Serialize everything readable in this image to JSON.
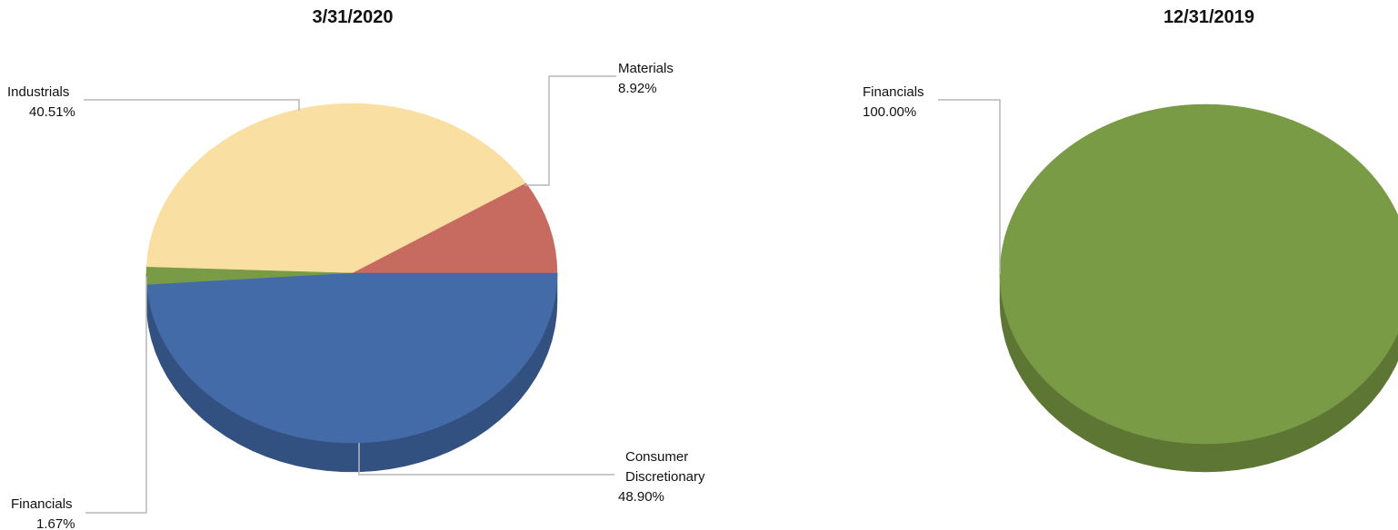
{
  "chart_data": [
    {
      "type": "pie",
      "title": "3/31/2020",
      "slices": [
        {
          "label": "Materials",
          "percent_label": "8.92%",
          "value": 8.92,
          "color": "#c76b61"
        },
        {
          "label": "Industrials",
          "percent_label": "40.51%",
          "value": 40.51,
          "color": "#fadfa3"
        },
        {
          "label": "Financials",
          "percent_label": "1.67%",
          "value": 1.67,
          "color": "#7a9b45"
        },
        {
          "label": "Consumer Discretionary",
          "label_lines": [
            "Consumer",
            "Discretionary"
          ],
          "percent_label": "48.90%",
          "value": 48.9,
          "color": "#436ba8"
        }
      ]
    },
    {
      "type": "pie",
      "title": "12/31/2019",
      "slices": [
        {
          "label": "Financials",
          "percent_label": "100.00%",
          "value": 100.0,
          "color": "#7a9b45"
        }
      ]
    }
  ]
}
